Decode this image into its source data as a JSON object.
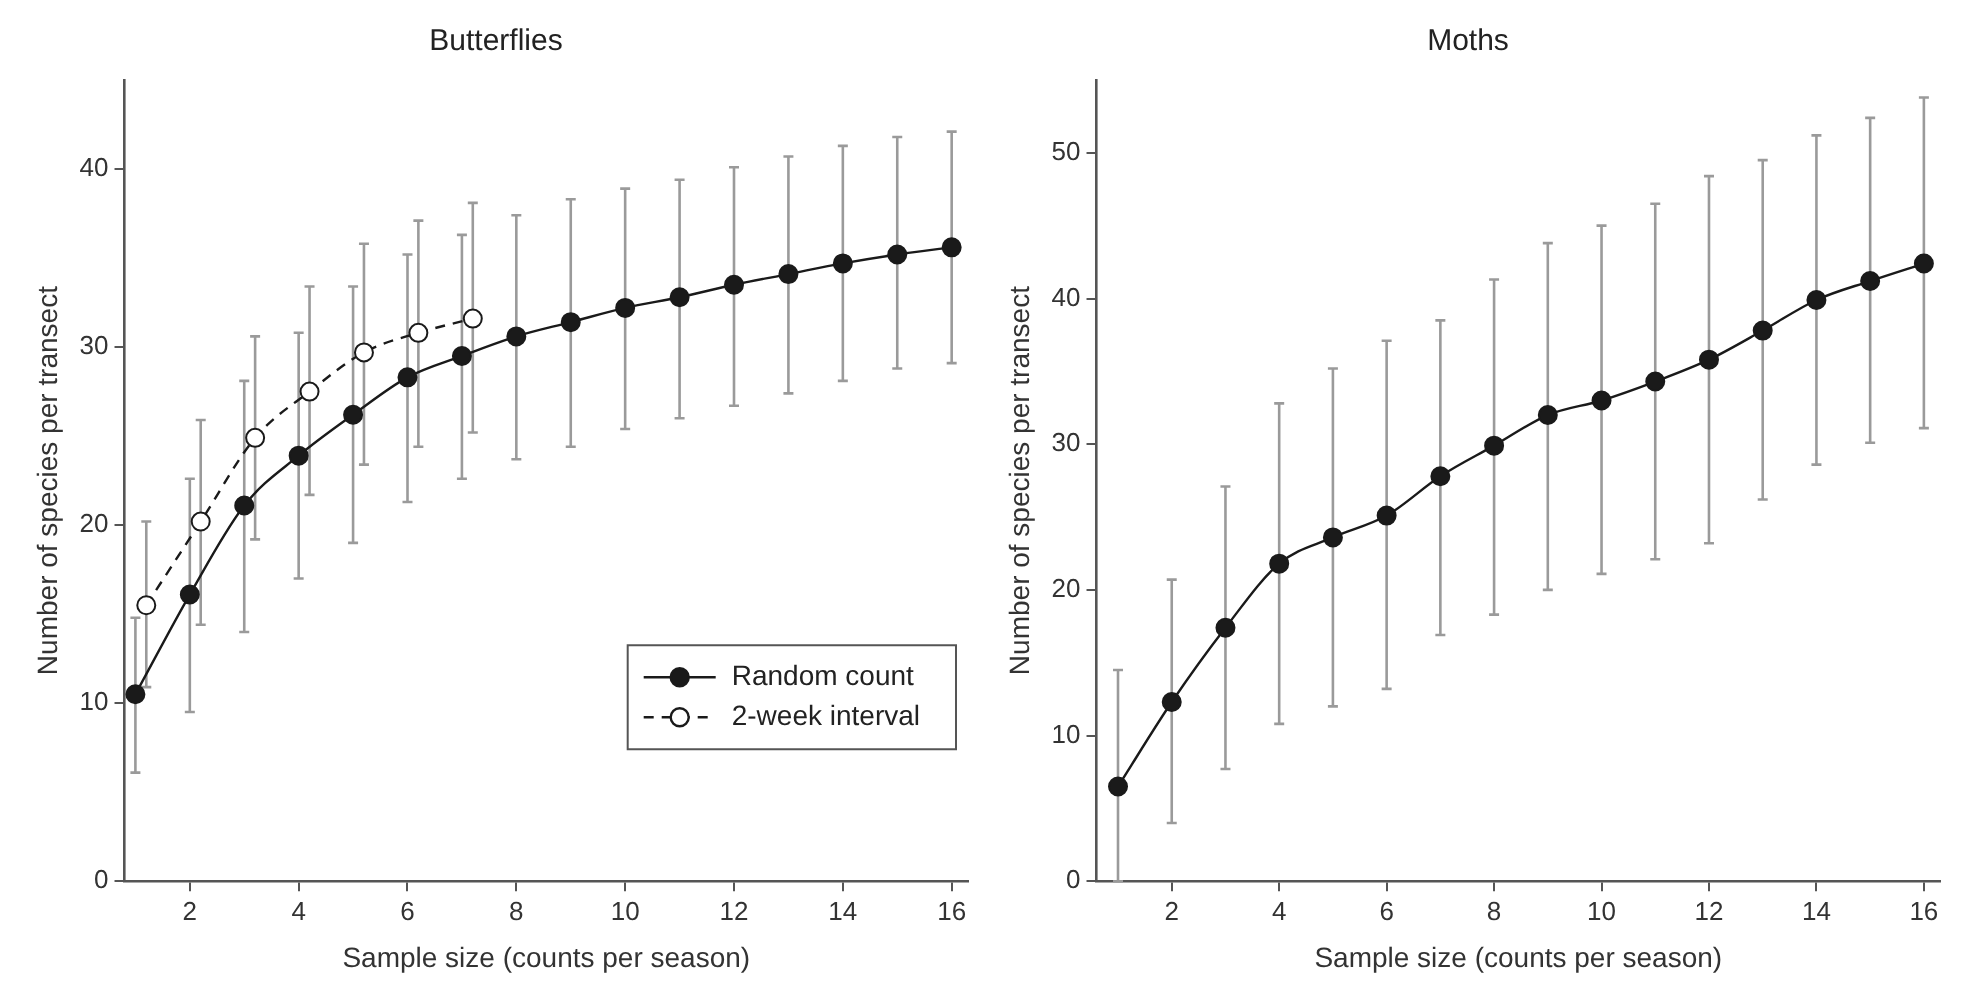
{
  "chart_data": [
    {
      "type": "line",
      "title": "Butterflies",
      "xlabel": "Sample size (counts per season)",
      "ylabel": "Number of species per transect",
      "xlim": [
        0.8,
        16.3
      ],
      "xticks": [
        2,
        4,
        6,
        8,
        10,
        12,
        14,
        16
      ],
      "ylim": [
        0,
        45
      ],
      "yticks": [
        0,
        10,
        20,
        30,
        40
      ],
      "grid": false,
      "legend": "bottom right",
      "marker": "circle",
      "series": [
        {
          "name": "Random count",
          "color": "#1a1a1a",
          "line_style": "solid",
          "x": [
            1,
            2,
            3,
            4,
            5,
            6,
            7,
            8,
            9,
            10,
            11,
            12,
            13,
            14,
            15,
            16
          ],
          "values": [
            10.5,
            16.1,
            21.1,
            23.9,
            26.2,
            28.3,
            29.5,
            30.6,
            31.4,
            32.2,
            32.8,
            33.5,
            34.1,
            34.7,
            35.2,
            35.6
          ],
          "errors": [
            [
              6.1,
              14.8
            ],
            [
              9.5,
              22.6
            ],
            [
              14,
              28.1
            ],
            [
              17,
              30.8
            ],
            [
              19,
              33.4
            ],
            [
              21.3,
              35.2
            ],
            [
              22.6,
              36.3
            ],
            [
              23.7,
              37.4
            ],
            [
              24.4,
              38.3
            ],
            [
              25.4,
              38.9
            ],
            [
              26,
              39.4
            ],
            [
              26.7,
              40.1
            ],
            [
              27.4,
              40.7
            ],
            [
              28.1,
              41.3
            ],
            [
              28.8,
              41.8
            ],
            [
              29.1,
              42.1
            ]
          ]
        },
        {
          "name": "2-week interval",
          "color": "#1a1a1a",
          "line_style": "dashed",
          "x": [
            1.2,
            2.2,
            3.2,
            4.2,
            5.2,
            6.2,
            7.2
          ],
          "values": [
            15.5,
            20.2,
            24.9,
            27.5,
            29.7,
            30.8,
            31.6
          ],
          "errors": [
            [
              10.9,
              20.2
            ],
            [
              14.4,
              25.9
            ],
            [
              19.2,
              30.6
            ],
            [
              21.7,
              33.4
            ],
            [
              23.4,
              35.8
            ],
            [
              24.4,
              37.1
            ],
            [
              25.2,
              38.1
            ]
          ]
        }
      ]
    },
    {
      "type": "line",
      "title": "Moths",
      "xlabel": "Sample size (counts per season)",
      "ylabel": "Number of species per transect",
      "xlim": [
        0.6,
        16.3
      ],
      "xticks": [
        2,
        4,
        6,
        8,
        10,
        12,
        14,
        16
      ],
      "ylim": [
        0,
        55
      ],
      "yticks": [
        0,
        10,
        20,
        30,
        40,
        50
      ],
      "grid": false,
      "marker": "circle",
      "series": [
        {
          "color": "#1a1a1a",
          "line_style": "solid",
          "x": [
            1,
            2,
            3,
            4,
            5,
            6,
            7,
            8,
            9,
            10,
            11,
            12,
            13,
            14,
            15,
            16
          ],
          "values": [
            6.5,
            12.3,
            17.4,
            21.8,
            23.6,
            25.1,
            27.8,
            29.9,
            32,
            33,
            34.3,
            35.8,
            37.8,
            39.9,
            41.2,
            42.4
          ],
          "errors": [
            [
              0,
              14.5
            ],
            [
              4,
              20.7
            ],
            [
              7.7,
              27.1
            ],
            [
              10.8,
              32.8
            ],
            [
              12,
              35.2
            ],
            [
              13.2,
              37.1
            ],
            [
              16.9,
              38.5
            ],
            [
              18.3,
              41.3
            ],
            [
              20,
              43.8
            ],
            [
              21.1,
              45
            ],
            [
              22.1,
              46.5
            ],
            [
              23.2,
              48.4
            ],
            [
              26.2,
              49.5
            ],
            [
              28.6,
              51.2
            ],
            [
              30.1,
              52.4
            ],
            [
              31.1,
              53.8
            ]
          ]
        }
      ]
    }
  ]
}
